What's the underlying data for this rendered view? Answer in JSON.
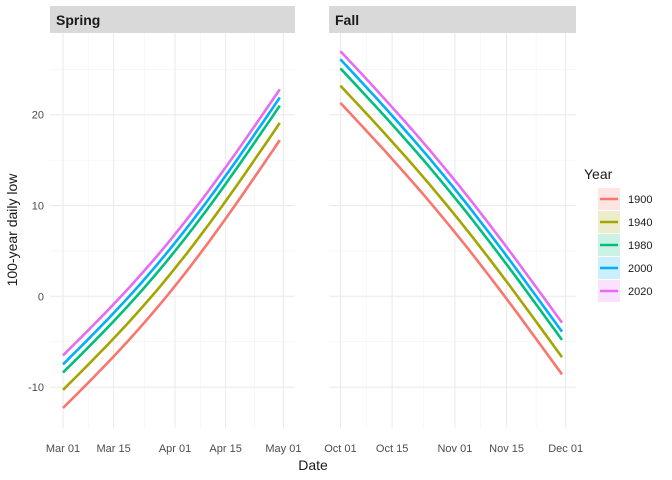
{
  "chart_data": {
    "type": "line",
    "xlabel": "Date",
    "ylabel": "100-year daily low",
    "ylim": [
      -14.5,
      29
    ],
    "y_ticks": [
      -10,
      0,
      10,
      20
    ],
    "grid": true,
    "legend_title": "Year",
    "legend_position": "right",
    "panels": [
      {
        "title": "Spring",
        "x_ticks": [
          "Mar 01",
          "Mar 15",
          "Apr 01",
          "Apr 15",
          "May 01"
        ],
        "x_tick_days": [
          0,
          14,
          31,
          45,
          61
        ],
        "xlim_days": [
          -3.6,
          64.2
        ],
        "x_start": "Mar 01",
        "x_end": "Apr 30",
        "series": [
          {
            "name": "1900",
            "start": -12.3,
            "end": 17.2
          },
          {
            "name": "1940",
            "start": -10.3,
            "end": 19.1
          },
          {
            "name": "1980",
            "start": -8.4,
            "end": 21.0
          },
          {
            "name": "2000",
            "start": -7.5,
            "end": 21.9
          },
          {
            "name": "2020",
            "start": -6.5,
            "end": 22.8
          }
        ]
      },
      {
        "title": "Fall",
        "x_ticks": [
          "Oct 01",
          "Oct 15",
          "Nov 01",
          "Nov 15",
          "Dec 01"
        ],
        "x_tick_days": [
          0,
          14,
          31,
          45,
          61
        ],
        "xlim_days": [
          -3.1,
          63.8
        ],
        "x_start": "Oct 01",
        "x_end": "Nov 30",
        "series": [
          {
            "name": "1900",
            "start": 21.3,
            "end": -8.6
          },
          {
            "name": "1940",
            "start": 23.2,
            "end": -6.7
          },
          {
            "name": "1980",
            "start": 25.1,
            "end": -4.8
          },
          {
            "name": "2000",
            "start": 26.1,
            "end": -3.9
          },
          {
            "name": "2020",
            "start": 27.0,
            "end": -2.9
          }
        ]
      }
    ],
    "legend": [
      {
        "name": "1900",
        "color": "#F8766D"
      },
      {
        "name": "1940",
        "color": "#A3A500"
      },
      {
        "name": "1980",
        "color": "#00BF7D"
      },
      {
        "name": "2000",
        "color": "#00B0F6"
      },
      {
        "name": "2020",
        "color": "#E76BF3"
      }
    ]
  }
}
